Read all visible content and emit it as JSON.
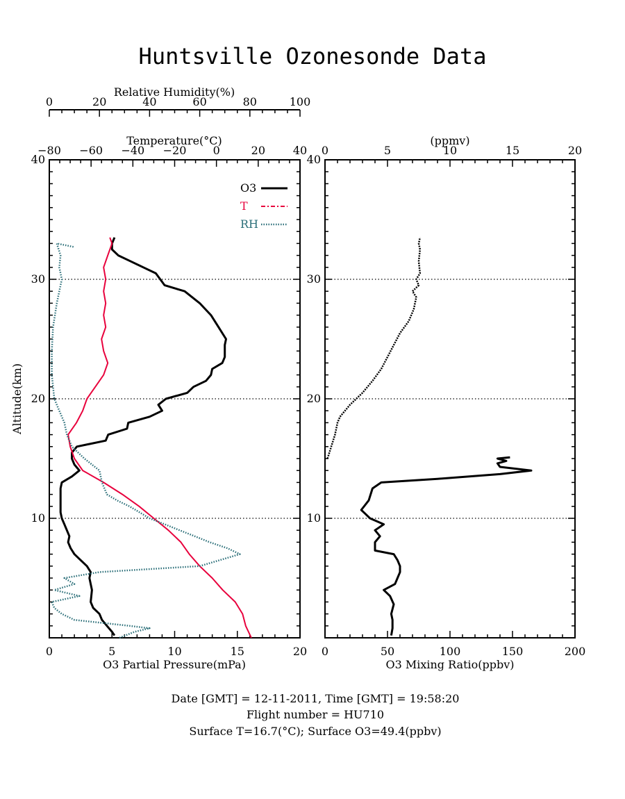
{
  "title": "Huntsville Ozonesonde Data",
  "footer": {
    "line1": "Date [GMT] = 12-11-2011,  Time [GMT] = 19:58:20",
    "line2": "Flight number = HU710",
    "line3": "Surface T=16.7(°C); Surface O3=49.4(ppbv)"
  },
  "colors": {
    "o3": "#000000",
    "t": "#e8003c",
    "rh": "#2a6e78"
  },
  "chart_data": [
    {
      "type": "line",
      "ylabel": "Altitude(km)",
      "ylim": [
        0,
        40
      ],
      "y_ticks": [
        "10",
        "20",
        "30",
        "40"
      ],
      "grid_y": [
        10,
        20,
        30
      ],
      "axes": {
        "o3_partial_pressure": {
          "label": "O3 Partial Pressure(mPa)",
          "range": [
            0,
            20
          ],
          "ticks": [
            "0",
            "5",
            "10",
            "15",
            "20"
          ]
        },
        "temperature": {
          "label": "Temperature(°C)",
          "range": [
            -80,
            40
          ],
          "ticks": [
            "−80",
            "−60",
            "−40",
            "−20",
            "0",
            "20",
            "40"
          ]
        },
        "relative_humidity": {
          "label": "Relative Humidity(%)",
          "range": [
            0,
            100
          ],
          "ticks": [
            "0",
            "20",
            "40",
            "60",
            "80",
            "100"
          ]
        }
      },
      "legend": {
        "position": "top-right",
        "entries": [
          "O3",
          "T",
          "RH"
        ]
      },
      "series": [
        {
          "name": "O3",
          "axis": "o3_partial_pressure",
          "points": [
            [
              5.2,
              0.2
            ],
            [
              5.0,
              0.5
            ],
            [
              4.6,
              1.0
            ],
            [
              4.2,
              1.5
            ],
            [
              4.0,
              2.0
            ],
            [
              3.5,
              2.5
            ],
            [
              3.3,
              3.0
            ],
            [
              3.4,
              4.0
            ],
            [
              3.2,
              5.0
            ],
            [
              3.3,
              5.5
            ],
            [
              3.0,
              6.0
            ],
            [
              2.5,
              6.5
            ],
            [
              2.0,
              7.0
            ],
            [
              1.7,
              7.5
            ],
            [
              1.5,
              8.0
            ],
            [
              1.6,
              8.5
            ],
            [
              1.4,
              9.0
            ],
            [
              1.2,
              9.5
            ],
            [
              1.0,
              10.0
            ],
            [
              0.9,
              10.5
            ],
            [
              0.9,
              11.5
            ],
            [
              0.9,
              12.5
            ],
            [
              1.0,
              13.0
            ],
            [
              1.8,
              13.5
            ],
            [
              2.4,
              14.0
            ],
            [
              2.0,
              14.5
            ],
            [
              1.8,
              15.0
            ],
            [
              1.8,
              15.5
            ],
            [
              2.2,
              16.0
            ],
            [
              4.5,
              16.5
            ],
            [
              4.7,
              17.0
            ],
            [
              6.2,
              17.5
            ],
            [
              6.3,
              18.0
            ],
            [
              8.0,
              18.5
            ],
            [
              9.0,
              19.0
            ],
            [
              8.7,
              19.5
            ],
            [
              9.3,
              20.0
            ],
            [
              11.0,
              20.5
            ],
            [
              11.5,
              21.0
            ],
            [
              12.5,
              21.5
            ],
            [
              12.9,
              22.0
            ],
            [
              13.0,
              22.5
            ],
            [
              13.8,
              23.0
            ],
            [
              14.0,
              23.5
            ],
            [
              14.0,
              24.5
            ],
            [
              14.1,
              25.0
            ],
            [
              13.5,
              26.0
            ],
            [
              12.9,
              27.0
            ],
            [
              12.0,
              28.0
            ],
            [
              10.8,
              29.0
            ],
            [
              9.2,
              29.5
            ],
            [
              8.5,
              30.5
            ],
            [
              7.5,
              31.0
            ],
            [
              6.5,
              31.5
            ],
            [
              5.5,
              32.0
            ],
            [
              5.0,
              32.5
            ],
            [
              5.0,
              33.0
            ],
            [
              5.2,
              33.5
            ]
          ]
        },
        {
          "name": "T",
          "axis": "temperature",
          "points": [
            [
              16.7,
              0.0
            ],
            [
              14.0,
              1.0
            ],
            [
              12.5,
              2.0
            ],
            [
              9.0,
              3.0
            ],
            [
              3.0,
              4.0
            ],
            [
              -2.0,
              5.0
            ],
            [
              -8.0,
              6.0
            ],
            [
              -13.0,
              7.0
            ],
            [
              -17.0,
              8.0
            ],
            [
              -23.0,
              9.0
            ],
            [
              -30.0,
              10.0
            ],
            [
              -37.0,
              11.0
            ],
            [
              -45.0,
              12.0
            ],
            [
              -54.0,
              13.0
            ],
            [
              -64.0,
              14.0
            ],
            [
              -68.0,
              15.0
            ],
            [
              -70.0,
              16.0
            ],
            [
              -71.0,
              17.0
            ],
            [
              -67.0,
              18.0
            ],
            [
              -64.0,
              19.0
            ],
            [
              -62.0,
              20.0
            ],
            [
              -58.0,
              21.0
            ],
            [
              -54.0,
              22.0
            ],
            [
              -52.0,
              23.0
            ],
            [
              -54.0,
              24.0
            ],
            [
              -55.0,
              25.0
            ],
            [
              -53.0,
              26.0
            ],
            [
              -54.0,
              27.0
            ],
            [
              -53.0,
              28.0
            ],
            [
              -54.0,
              29.0
            ],
            [
              -53.0,
              30.0
            ],
            [
              -54.0,
              31.0
            ],
            [
              -52.0,
              32.0
            ],
            [
              -50.0,
              33.0
            ],
            [
              -51.0,
              33.5
            ]
          ]
        },
        {
          "name": "RH",
          "axis": "relative_humidity",
          "points": [
            [
              28.0,
              0.0
            ],
            [
              34.0,
              0.5
            ],
            [
              40.0,
              0.8
            ],
            [
              32.0,
              1.0
            ],
            [
              10.0,
              1.5
            ],
            [
              5.0,
              2.0
            ],
            [
              2.0,
              2.5
            ],
            [
              1.0,
              3.0
            ],
            [
              12.0,
              3.5
            ],
            [
              2.0,
              4.0
            ],
            [
              10.0,
              4.5
            ],
            [
              6.0,
              5.0
            ],
            [
              20.0,
              5.5
            ],
            [
              60.0,
              6.0
            ],
            [
              68.0,
              6.5
            ],
            [
              76.0,
              7.0
            ],
            [
              71.0,
              7.5
            ],
            [
              64.0,
              8.0
            ],
            [
              58.0,
              8.5
            ],
            [
              52.0,
              9.0
            ],
            [
              46.0,
              9.5
            ],
            [
              40.0,
              10.0
            ],
            [
              36.0,
              10.5
            ],
            [
              32.0,
              11.0
            ],
            [
              27.0,
              11.5
            ],
            [
              23.0,
              12.0
            ],
            [
              21.0,
              13.0
            ],
            [
              20.0,
              14.0
            ],
            [
              14.0,
              15.0
            ],
            [
              9.0,
              16.0
            ],
            [
              7.0,
              17.0
            ],
            [
              6.0,
              18.0
            ],
            [
              4.0,
              19.0
            ],
            [
              2.0,
              20.0
            ],
            [
              1.0,
              22.0
            ],
            [
              1.0,
              24.0
            ],
            [
              1.5,
              26.0
            ],
            [
              3.0,
              28.0
            ],
            [
              4.0,
              29.0
            ],
            [
              5.0,
              30.0
            ],
            [
              4.0,
              31.0
            ],
            [
              4.5,
              32.0
            ],
            [
              3.0,
              33.0
            ],
            [
              10.0,
              32.7
            ]
          ]
        }
      ]
    },
    {
      "type": "line",
      "ylim": [
        0,
        40
      ],
      "y_ticks": [
        "10",
        "20",
        "30",
        "40"
      ],
      "grid_y": [
        10,
        20,
        30
      ],
      "axes": {
        "o3_mixing_ratio": {
          "label": "O3 Mixing Ratio(ppbv)",
          "range": [
            0,
            200
          ],
          "ticks": [
            "0",
            "50",
            "100",
            "150",
            "200"
          ]
        },
        "ppmv": {
          "label": "(ppmv)",
          "range": [
            0,
            20
          ],
          "ticks": [
            "0",
            "5",
            "10",
            "15",
            "20"
          ]
        }
      },
      "series": [
        {
          "name": "O3",
          "axis": "ppmv",
          "points": [
            [
              5.3,
              0.2
            ],
            [
              5.4,
              0.8
            ],
            [
              5.4,
              1.5
            ],
            [
              5.3,
              2.0
            ],
            [
              5.5,
              2.8
            ],
            [
              5.2,
              3.5
            ],
            [
              4.7,
              4.0
            ],
            [
              5.6,
              4.5
            ],
            [
              5.8,
              5.0
            ],
            [
              6.0,
              5.5
            ],
            [
              6.0,
              6.0
            ],
            [
              5.8,
              6.5
            ],
            [
              5.5,
              7.0
            ],
            [
              4.0,
              7.3
            ],
            [
              4.0,
              8.0
            ],
            [
              4.4,
              8.5
            ],
            [
              4.0,
              9.0
            ],
            [
              4.7,
              9.5
            ],
            [
              3.6,
              10.0
            ],
            [
              3.2,
              10.4
            ],
            [
              2.9,
              10.7
            ],
            [
              3.5,
              11.5
            ],
            [
              3.8,
              12.5
            ],
            [
              4.5,
              13.0
            ],
            [
              9.0,
              13.3
            ],
            [
              14.0,
              13.7
            ],
            [
              16.5,
              14.0
            ],
            [
              14.0,
              14.3
            ],
            [
              13.8,
              14.6
            ],
            [
              14.5,
              14.8
            ],
            [
              13.8,
              15.0
            ],
            [
              14.8,
              15.1
            ]
          ]
        },
        {
          "name": "O3",
          "axis": "ppmv",
          "points": [
            [
              0.2,
              15.0
            ],
            [
              0.5,
              16.0
            ],
            [
              0.8,
              17.0
            ],
            [
              1.0,
              18.0
            ],
            [
              1.2,
              18.5
            ],
            [
              2.0,
              19.5
            ],
            [
              2.5,
              20.0
            ],
            [
              3.0,
              20.5
            ],
            [
              3.8,
              21.5
            ],
            [
              4.5,
              22.5
            ],
            [
              5.0,
              23.5
            ],
            [
              5.5,
              24.5
            ],
            [
              6.0,
              25.5
            ],
            [
              6.7,
              26.5
            ],
            [
              7.1,
              27.5
            ],
            [
              7.3,
              28.5
            ],
            [
              7.0,
              29.0
            ],
            [
              7.5,
              29.5
            ],
            [
              7.3,
              30.0
            ],
            [
              7.6,
              30.5
            ],
            [
              7.5,
              31.5
            ],
            [
              7.6,
              32.5
            ],
            [
              7.5,
              33.0
            ],
            [
              7.6,
              33.5
            ]
          ]
        }
      ]
    }
  ]
}
